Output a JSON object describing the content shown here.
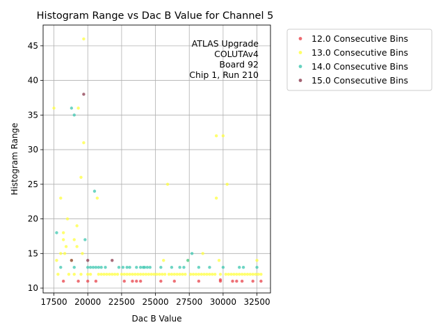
{
  "chart_data": {
    "type": "scatter",
    "title": "Histogram Range vs Dac B Value for Channel 5",
    "xlabel": "Dac B Value",
    "ylabel": "Histogram Range",
    "xlim": [
      16700,
      33500
    ],
    "ylim": [
      9.3,
      48
    ],
    "xticks": [
      17500,
      20000,
      22500,
      25000,
      27500,
      30000,
      32500
    ],
    "xtick_labels": [
      "17500",
      "20000",
      "22500",
      "25000",
      "27500",
      "30000",
      "32500"
    ],
    "yticks": [
      10,
      15,
      20,
      25,
      30,
      35,
      40,
      45
    ],
    "ytick_labels": [
      "10",
      "15",
      "20",
      "25",
      "30",
      "35",
      "40",
      "45"
    ],
    "grid": true,
    "legend_position": "outside-top-right",
    "annotation": [
      "ATLAS Upgrade",
      "COLUTAv4",
      "Board 92",
      "Chip 1, Run 210"
    ],
    "series": [
      {
        "name": "12.0 Consecutive Bins",
        "color": "#e8434b",
        "points": [
          [
            18200,
            11
          ],
          [
            19300,
            11
          ],
          [
            20000,
            11
          ],
          [
            20600,
            11
          ],
          [
            22700,
            11
          ],
          [
            23300,
            11
          ],
          [
            23600,
            11
          ],
          [
            23900,
            11
          ],
          [
            25400,
            11
          ],
          [
            26400,
            11
          ],
          [
            28200,
            11
          ],
          [
            29800,
            11
          ],
          [
            29800,
            11.2
          ],
          [
            30700,
            11
          ],
          [
            31000,
            11
          ],
          [
            31400,
            11
          ],
          [
            32200,
            11
          ],
          [
            32800,
            11
          ]
        ]
      },
      {
        "name": "13.0 Consecutive Bins",
        "color": "#ffff40",
        "points": [
          [
            17500,
            36
          ],
          [
            17700,
            14
          ],
          [
            17800,
            12
          ],
          [
            18000,
            23
          ],
          [
            18000,
            15
          ],
          [
            18200,
            18
          ],
          [
            18200,
            17
          ],
          [
            18300,
            15
          ],
          [
            18400,
            16
          ],
          [
            18500,
            20
          ],
          [
            18600,
            12
          ],
          [
            18800,
            14
          ],
          [
            19000,
            17
          ],
          [
            19000,
            12
          ],
          [
            19200,
            19
          ],
          [
            19200,
            16
          ],
          [
            19300,
            36
          ],
          [
            19500,
            26
          ],
          [
            19600,
            15
          ],
          [
            19700,
            46
          ],
          [
            19700,
            31
          ],
          [
            19500,
            12
          ],
          [
            20000,
            12
          ],
          [
            20200,
            12
          ],
          [
            20700,
            23
          ],
          [
            20800,
            12
          ],
          [
            21000,
            12
          ],
          [
            21200,
            12
          ],
          [
            21400,
            12
          ],
          [
            21600,
            12
          ],
          [
            21800,
            12
          ],
          [
            22000,
            12
          ],
          [
            22200,
            12
          ],
          [
            22500,
            12
          ],
          [
            22700,
            12
          ],
          [
            22900,
            12
          ],
          [
            23100,
            12
          ],
          [
            23300,
            12
          ],
          [
            23500,
            12
          ],
          [
            23700,
            12
          ],
          [
            23900,
            12
          ],
          [
            24100,
            12
          ],
          [
            24300,
            12
          ],
          [
            24500,
            12
          ],
          [
            24700,
            12
          ],
          [
            24900,
            12
          ],
          [
            25100,
            12
          ],
          [
            25300,
            12
          ],
          [
            25500,
            12
          ],
          [
            25600,
            14
          ],
          [
            25700,
            12
          ],
          [
            25900,
            25
          ],
          [
            26000,
            12
          ],
          [
            26200,
            12
          ],
          [
            26400,
            12
          ],
          [
            26600,
            12
          ],
          [
            26800,
            12
          ],
          [
            27000,
            12
          ],
          [
            27200,
            12
          ],
          [
            27400,
            14
          ],
          [
            27600,
            12
          ],
          [
            27800,
            12
          ],
          [
            28000,
            12
          ],
          [
            28200,
            12
          ],
          [
            28400,
            12
          ],
          [
            28500,
            15
          ],
          [
            28600,
            12
          ],
          [
            28800,
            12
          ],
          [
            29000,
            12
          ],
          [
            29200,
            12
          ],
          [
            29400,
            12
          ],
          [
            29500,
            32
          ],
          [
            29500,
            23
          ],
          [
            29700,
            14
          ],
          [
            29800,
            12
          ],
          [
            30000,
            32
          ],
          [
            30200,
            12
          ],
          [
            30300,
            25
          ],
          [
            30400,
            12
          ],
          [
            30600,
            12
          ],
          [
            30800,
            12
          ],
          [
            31000,
            12
          ],
          [
            31200,
            12
          ],
          [
            31400,
            12
          ],
          [
            31600,
            12
          ],
          [
            31800,
            12
          ],
          [
            32000,
            12
          ],
          [
            32200,
            12
          ],
          [
            32400,
            12
          ],
          [
            32500,
            14
          ],
          [
            32600,
            12
          ],
          [
            32800,
            12
          ]
        ]
      },
      {
        "name": "14.0 Consecutive Bins",
        "color": "#3ec7b0",
        "points": [
          [
            17700,
            18
          ],
          [
            18000,
            13
          ],
          [
            18800,
            36
          ],
          [
            19000,
            35
          ],
          [
            19000,
            13
          ],
          [
            19800,
            17
          ],
          [
            20000,
            13
          ],
          [
            20200,
            13
          ],
          [
            20400,
            13
          ],
          [
            20500,
            24
          ],
          [
            20600,
            13
          ],
          [
            20800,
            13
          ],
          [
            21000,
            13
          ],
          [
            21300,
            13
          ],
          [
            22300,
            13
          ],
          [
            22600,
            13
          ],
          [
            22900,
            13
          ],
          [
            23100,
            13
          ],
          [
            23600,
            13
          ],
          [
            23900,
            13
          ],
          [
            24100,
            13
          ],
          [
            24200,
            13
          ],
          [
            24400,
            13
          ],
          [
            24600,
            13
          ],
          [
            25400,
            13
          ],
          [
            26200,
            13
          ],
          [
            26800,
            13
          ],
          [
            27100,
            13
          ],
          [
            27400,
            14
          ],
          [
            27700,
            15
          ],
          [
            28200,
            13
          ],
          [
            29000,
            13
          ],
          [
            30000,
            13
          ],
          [
            31200,
            13
          ],
          [
            31500,
            13
          ],
          [
            32500,
            13
          ]
        ]
      },
      {
        "name": "15.0 Consecutive Bins",
        "color": "#8b3a4e",
        "points": [
          [
            18800,
            14
          ],
          [
            19700,
            38
          ],
          [
            20000,
            14
          ],
          [
            21800,
            14
          ]
        ]
      }
    ]
  }
}
